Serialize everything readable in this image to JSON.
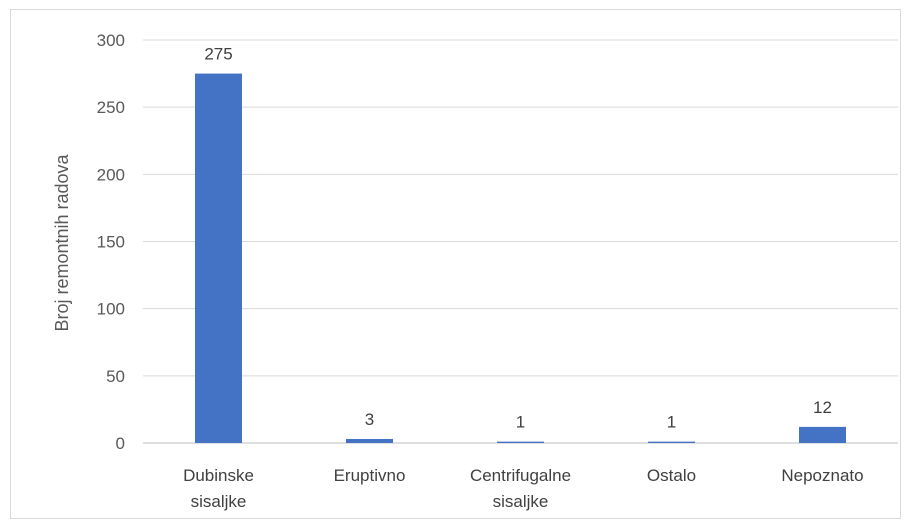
{
  "chart_data": {
    "type": "bar",
    "categories": [
      [
        "Dubinske",
        "sisaljke"
      ],
      [
        "Eruptivno"
      ],
      [
        "Centrifugalne",
        "sisaljke"
      ],
      [
        "Ostalo"
      ],
      [
        "Nepoznato"
      ]
    ],
    "values": [
      275,
      3,
      1,
      1,
      12
    ],
    "ylabel": "Broj remontnih radova",
    "xlabel": "",
    "ylim": [
      0,
      300
    ],
    "yticks": [
      0,
      50,
      100,
      150,
      200,
      250,
      300
    ],
    "grid": true,
    "legend": "none",
    "colors": {
      "bar": "#4472c4",
      "grid": "#d9d9d9",
      "axis": "#bfbfbf"
    }
  }
}
